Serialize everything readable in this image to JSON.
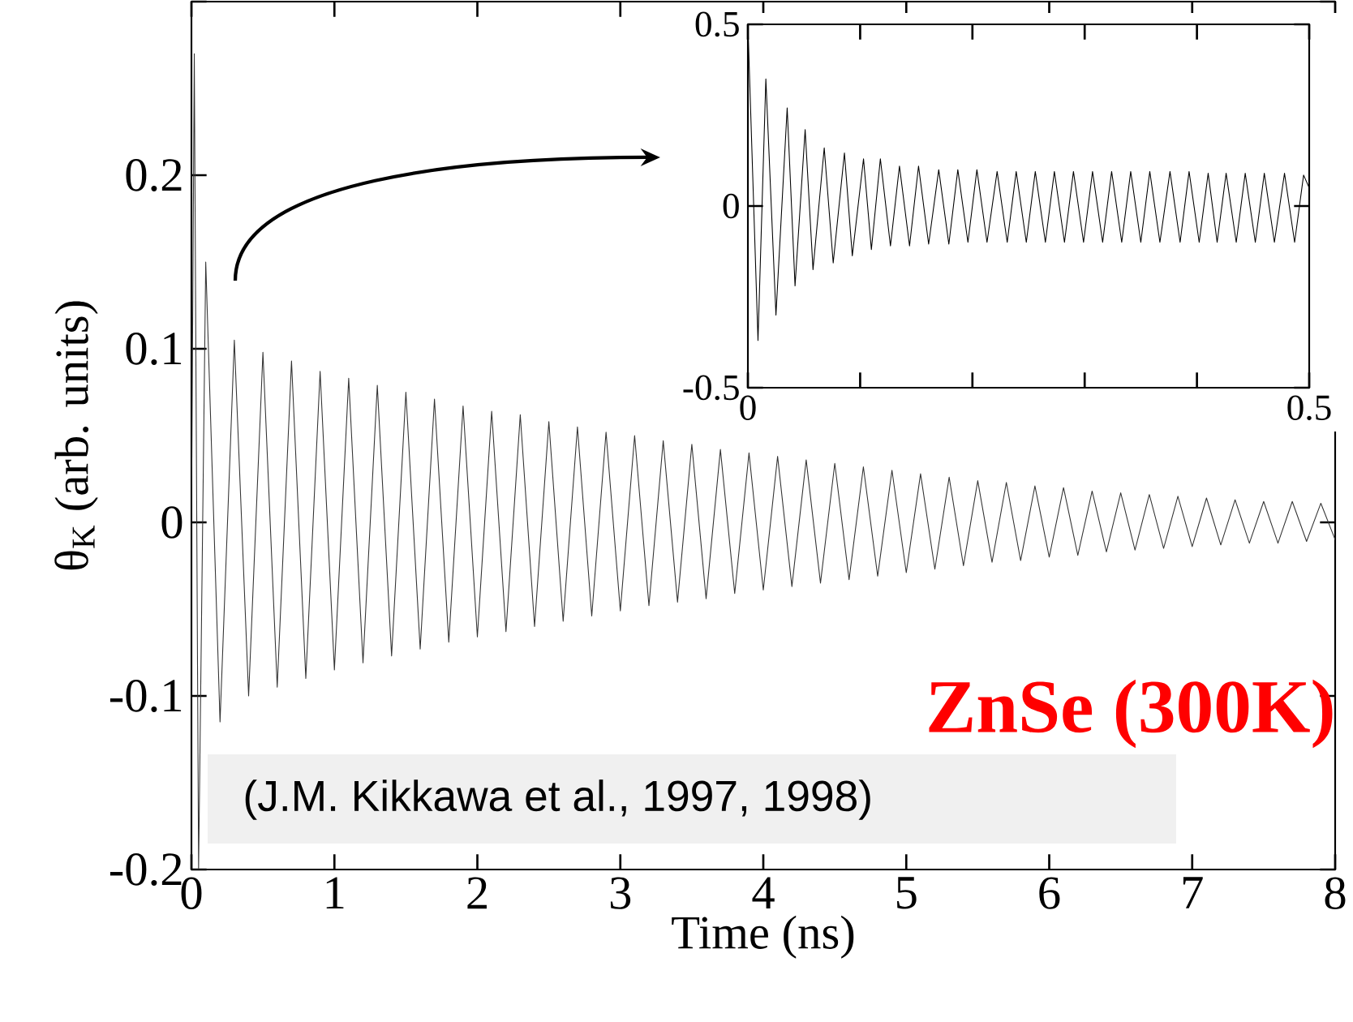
{
  "chart_data": [
    {
      "type": "line",
      "xlabel": "Time (ns)",
      "ylabel": "θ$_{K}$ (arb. units)",
      "xlim": [
        0,
        8
      ],
      "ylim": [
        -0.2,
        0.3
      ],
      "xticks": [
        0,
        1,
        2,
        3,
        4,
        5,
        6,
        7,
        8
      ],
      "yticks": [
        -0.2,
        -0.1,
        0,
        0.1,
        0.2,
        {
          "value": 0.3,
          "label": null
        }
      ],
      "marker": "none",
      "annotations": [
        "ZnSe (300K)",
        "(J.M. Kikkawa et al., 1997, 1998)"
      ],
      "series": [
        {
          "color": "#333333",
          "x": [
            0,
            0.02,
            0.05,
            0.1,
            0.2,
            0.3,
            0.4,
            0.5,
            0.6,
            0.7,
            0.8,
            0.9,
            1.0,
            1.1,
            1.2,
            1.3,
            1.4,
            1.5,
            1.6,
            1.7,
            1.8,
            1.9,
            2.0,
            2.1,
            2.2,
            2.3,
            2.4,
            2.5,
            2.6,
            2.7,
            2.8,
            2.9,
            3.0,
            3.1,
            3.2,
            3.3,
            3.4,
            3.5,
            3.6,
            3.7,
            3.8,
            3.9,
            4.0,
            4.1,
            4.2,
            4.3,
            4.4,
            4.5,
            4.6,
            4.7,
            4.8,
            4.9,
            5.0,
            5.1,
            5.2,
            5.3,
            5.4,
            5.5,
            5.6,
            5.7,
            5.8,
            5.9,
            6.0,
            6.1,
            6.2,
            6.3,
            6.4,
            6.5,
            6.6,
            6.7,
            6.8,
            6.9,
            7.0,
            7.1,
            7.2,
            7.3,
            7.4,
            7.5,
            7.6,
            7.7,
            7.8,
            7.9,
            8.0
          ],
          "values": [
            0,
            0.27,
            -0.2,
            0.15,
            -0.115,
            0.105,
            -0.1,
            0.098,
            -0.095,
            0.093,
            -0.09,
            0.087,
            -0.085,
            0.083,
            -0.081,
            0.079,
            -0.077,
            0.075,
            -0.073,
            0.071,
            -0.069,
            0.067,
            -0.066,
            0.064,
            -0.063,
            0.062,
            -0.06,
            0.058,
            -0.057,
            0.055,
            -0.054,
            0.052,
            -0.051,
            0.05,
            -0.048,
            0.047,
            -0.046,
            0.045,
            -0.044,
            0.042,
            -0.041,
            0.04,
            -0.039,
            0.038,
            -0.037,
            0.036,
            -0.035,
            0.034,
            -0.033,
            0.032,
            -0.031,
            0.03,
            -0.029,
            0.028,
            -0.027,
            0.026,
            -0.025,
            0.024,
            -0.023,
            0.023,
            -0.022,
            0.021,
            -0.02,
            0.02,
            -0.019,
            0.018,
            -0.017,
            0.017,
            -0.016,
            0.016,
            -0.015,
            0.015,
            -0.014,
            0.014,
            -0.013,
            0.013,
            -0.012,
            0.012,
            -0.012,
            0.012,
            -0.011,
            0.011,
            -0.01
          ]
        }
      ]
    },
    {
      "type": "line",
      "xlim": [
        0,
        0.5
      ],
      "ylim": [
        -0.5,
        0.5
      ],
      "xticks": [
        0,
        {
          "value": 0.1,
          "label": null
        },
        {
          "value": 0.2,
          "label": null
        },
        {
          "value": 0.3,
          "label": null
        },
        {
          "value": 0.4,
          "label": null
        },
        0.5
      ],
      "yticks": [
        -0.5,
        0,
        0.5
      ],
      "marker": "none",
      "series": [
        {
          "color": "#000000",
          "x": [
            0,
            0.009,
            0.016,
            0.025,
            0.035,
            0.042,
            0.051,
            0.058,
            0.068,
            0.076,
            0.086,
            0.093,
            0.103,
            0.11,
            0.118,
            0.127,
            0.135,
            0.144,
            0.152,
            0.161,
            0.17,
            0.179,
            0.187,
            0.196,
            0.204,
            0.213,
            0.222,
            0.231,
            0.239,
            0.248,
            0.256,
            0.265,
            0.273,
            0.282,
            0.29,
            0.299,
            0.307,
            0.316,
            0.324,
            0.333,
            0.341,
            0.35,
            0.358,
            0.367,
            0.376,
            0.385,
            0.393,
            0.402,
            0.41,
            0.418,
            0.426,
            0.435,
            0.443,
            0.452,
            0.46,
            0.469,
            0.478,
            0.487,
            0.495,
            0.5
          ],
          "values": [
            0.5,
            -0.37,
            0.35,
            -0.3,
            0.27,
            -0.22,
            0.21,
            -0.175,
            0.16,
            -0.157,
            0.146,
            -0.137,
            0.13,
            -0.12,
            0.13,
            -0.11,
            0.11,
            -0.11,
            0.11,
            -0.105,
            0.1,
            -0.105,
            0.1,
            -0.1,
            0.1,
            -0.1,
            0.095,
            -0.1,
            0.095,
            -0.1,
            0.095,
            -0.1,
            0.095,
            -0.1,
            0.095,
            -0.1,
            0.095,
            -0.1,
            0.095,
            -0.1,
            0.095,
            -0.1,
            0.095,
            -0.1,
            0.095,
            -0.1,
            0.095,
            -0.1,
            0.09,
            -0.1,
            0.09,
            -0.1,
            0.09,
            -0.1,
            0.09,
            -0.1,
            0.09,
            -0.1,
            0.085,
            0.05
          ]
        }
      ]
    }
  ]
}
